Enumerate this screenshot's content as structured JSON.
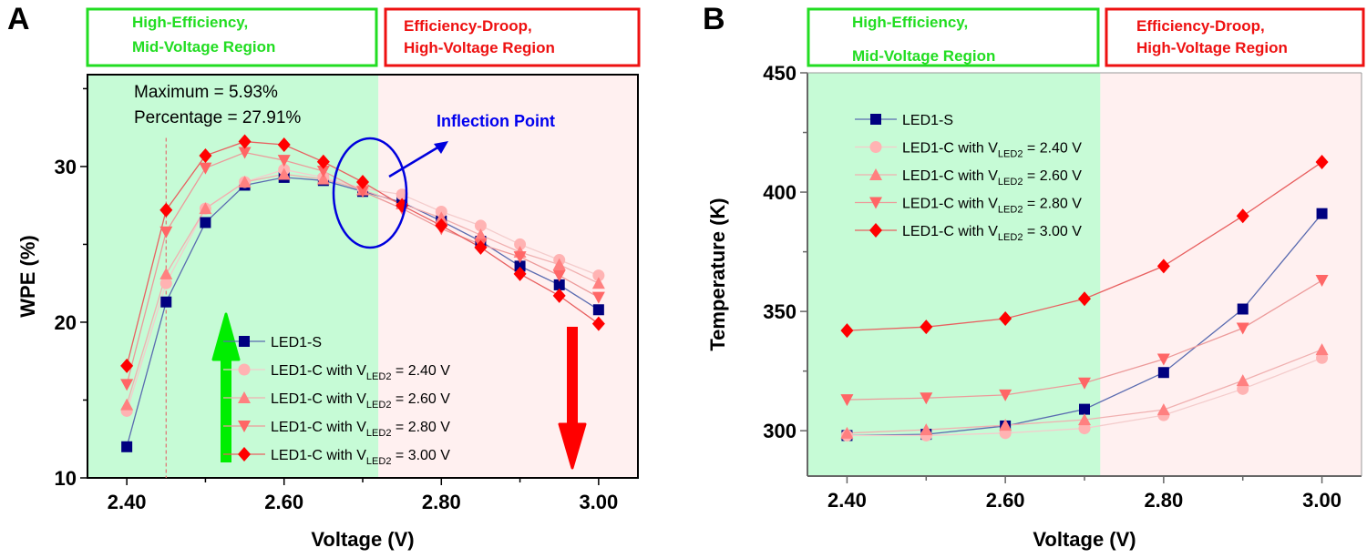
{
  "chart_data": [
    {
      "panel": "A",
      "type": "line",
      "title": "",
      "xlabel": "Voltage (V)",
      "ylabel": "WPE (%)",
      "xlim": [
        2.35,
        3.05
      ],
      "ylim": [
        10,
        36
      ],
      "xticks": [
        2.4,
        2.6,
        2.8,
        3.0
      ],
      "xtick_labels": [
        "2.40",
        "2.60",
        "2.80",
        "3.00"
      ],
      "yticks": [
        10,
        20,
        30
      ],
      "ytick_labels": [
        "10",
        "20",
        "30"
      ],
      "x": [
        2.4,
        2.45,
        2.5,
        2.55,
        2.6,
        2.65,
        2.7,
        2.75,
        2.8,
        2.85,
        2.9,
        2.95,
        3.0
      ],
      "series": [
        {
          "name": "LED1-S",
          "marker": "square",
          "color": "#000080",
          "line_color": "#5a6bb0",
          "values": [
            12.0,
            21.3,
            26.4,
            28.8,
            29.3,
            29.1,
            28.4,
            27.7,
            26.5,
            25.2,
            23.6,
            22.4,
            20.8
          ]
        },
        {
          "name": "LED1-C with V_LED2 = 2.40 V",
          "marker": "circle",
          "color": "#ffb3b3",
          "line_color": "#f4cccc",
          "values": [
            14.3,
            22.5,
            27.3,
            29.0,
            29.8,
            29.3,
            28.6,
            28.2,
            27.1,
            26.2,
            25.0,
            24.0,
            23.0
          ]
        },
        {
          "name": "LED1-C with V_LED2 = 2.60 V",
          "marker": "triangle-up",
          "color": "#ff8080",
          "line_color": "#f0b0b0",
          "values": [
            14.7,
            23.1,
            27.3,
            29.0,
            29.5,
            29.2,
            28.5,
            27.6,
            26.7,
            25.6,
            24.5,
            23.7,
            22.5
          ]
        },
        {
          "name": "LED1-C with V_LED2 = 2.80 V",
          "marker": "triangle-down",
          "color": "#ff6666",
          "line_color": "#ec9a9a",
          "values": [
            16.0,
            25.8,
            29.9,
            30.9,
            30.4,
            29.7,
            28.4,
            27.3,
            26.0,
            25.0,
            24.2,
            23.0,
            21.6
          ]
        },
        {
          "name": "LED1-C with V_LED2 = 3.00 V",
          "marker": "diamond",
          "color": "#ff0000",
          "line_color": "#e86060",
          "values": [
            17.2,
            27.2,
            30.7,
            31.6,
            31.4,
            30.3,
            29.0,
            27.5,
            26.2,
            24.8,
            23.1,
            21.7,
            19.9
          ]
        }
      ],
      "regions": [
        {
          "label_lines": [
            "High-Efficiency,",
            "Mid-Voltage Region"
          ],
          "x_range": [
            2.35,
            2.72
          ],
          "fill": "#c6fbd6",
          "border": "#22dd22",
          "text_color": "#22dd22"
        },
        {
          "label_lines": [
            "Efficiency-Droop,",
            "High-Voltage Region"
          ],
          "x_range": [
            2.72,
            3.05
          ],
          "fill": "#fff0f0",
          "border": "#ee1111",
          "text_color": "#ee1111"
        }
      ],
      "annotations": {
        "maximum": "Maximum = 5.93%",
        "percentage": "Percentage = 27.91%",
        "inflection": "Inflection Point",
        "dashed_line_x": 2.45,
        "inflection_x": 2.7,
        "inflection_y": 28.3,
        "up_arrow_color": "#00ee00",
        "down_arrow_color": "#ff0000"
      },
      "legend_position": "lower-center"
    },
    {
      "panel": "B",
      "type": "line",
      "title": "",
      "xlabel": "Voltage (V)",
      "ylabel": "Temperature (K)",
      "xlim": [
        2.35,
        3.05
      ],
      "ylim": [
        281,
        450
      ],
      "xticks": [
        2.4,
        2.6,
        2.8,
        3.0
      ],
      "xtick_labels": [
        "2.40",
        "2.60",
        "2.80",
        "3.00"
      ],
      "yticks": [
        300,
        350,
        400,
        450
      ],
      "ytick_labels": [
        "300",
        "350",
        "400",
        "450"
      ],
      "x": [
        2.4,
        2.5,
        2.6,
        2.7,
        2.8,
        2.9,
        3.0
      ],
      "series": [
        {
          "name": "LED1-S",
          "marker": "square",
          "color": "#000080",
          "line_color": "#5a6bb0",
          "values": [
            298,
            298.5,
            302,
            309,
            324.4,
            351,
            391
          ]
        },
        {
          "name": "LED1-C with V_LED2 = 2.40 V",
          "marker": "circle",
          "color": "#ffb3b3",
          "line_color": "#f4cccc",
          "values": [
            298,
            298,
            299,
            301,
            306.5,
            317.5,
            330.5
          ]
        },
        {
          "name": "LED1-C with V_LED2 = 2.60 V",
          "marker": "triangle-up",
          "color": "#ff8080",
          "line_color": "#f0b0b0",
          "values": [
            299,
            300.4,
            302.3,
            304.6,
            308.8,
            321,
            334
          ]
        },
        {
          "name": "LED1-C with V_LED2 = 2.80 V",
          "marker": "triangle-down",
          "color": "#ff6666",
          "line_color": "#ec9a9a",
          "values": [
            313,
            313.7,
            315,
            320,
            330,
            343,
            363
          ]
        },
        {
          "name": "LED1-C with V_LED2 = 3.00 V",
          "marker": "diamond",
          "color": "#ff0000",
          "line_color": "#e86060",
          "values": [
            342,
            343.5,
            347,
            355.3,
            369,
            390,
            412.6
          ]
        }
      ],
      "regions": [
        {
          "label_lines": [
            "High-Efficiency,",
            "Mid-Voltage Region"
          ],
          "x_range": [
            2.35,
            2.72
          ],
          "fill": "#c6fbd6",
          "border": "#22dd22",
          "text_color": "#22dd22"
        },
        {
          "label_lines": [
            "Efficiency-Droop,",
            "High-Voltage Region"
          ],
          "x_range": [
            2.72,
            3.05
          ],
          "fill": "#fff0f0",
          "border": "#ee1111",
          "text_color": "#ee1111"
        }
      ],
      "legend_position": "top-left"
    }
  ],
  "legend_entries": [
    {
      "prefix": "LED1-S",
      "sub": "",
      "suffix": ""
    },
    {
      "prefix": "LED1-C with V",
      "sub": "LED2",
      "suffix": " = 2.40 V"
    },
    {
      "prefix": "LED1-C with V",
      "sub": "LED2",
      "suffix": " = 2.60 V"
    },
    {
      "prefix": "LED1-C with V",
      "sub": "LED2",
      "suffix": " = 2.80 V"
    },
    {
      "prefix": "LED1-C with V",
      "sub": "LED2",
      "suffix": " = 3.00 V"
    }
  ]
}
